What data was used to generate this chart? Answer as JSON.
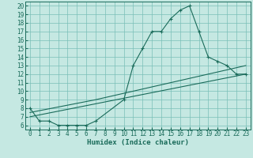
{
  "xlabel": "Humidex (Indice chaleur)",
  "xlim": [
    -0.5,
    23.5
  ],
  "ylim": [
    5.5,
    20.5
  ],
  "xticks": [
    0,
    1,
    2,
    3,
    4,
    5,
    6,
    7,
    8,
    9,
    10,
    11,
    12,
    13,
    14,
    15,
    16,
    17,
    18,
    19,
    20,
    21,
    22,
    23
  ],
  "yticks": [
    6,
    7,
    8,
    9,
    10,
    11,
    12,
    13,
    14,
    15,
    16,
    17,
    18,
    19,
    20
  ],
  "background_color": "#c5e8e2",
  "grid_color": "#7abfb8",
  "line_color": "#1a6b5a",
  "line1_x": [
    0,
    1,
    2,
    3,
    4,
    5,
    6,
    7,
    10,
    11,
    12,
    13,
    14,
    15,
    16,
    17,
    18,
    19,
    20,
    21,
    22,
    23
  ],
  "line1_y": [
    8.0,
    6.5,
    6.5,
    6.0,
    6.0,
    6.0,
    6.0,
    6.5,
    9.0,
    13.0,
    15.0,
    17.0,
    17.0,
    18.5,
    19.5,
    20.0,
    17.0,
    14.0,
    13.5,
    13.0,
    12.0,
    12.0
  ],
  "line2_x": [
    0,
    23
  ],
  "line2_y": [
    7.0,
    12.0
  ],
  "line3_x": [
    0,
    7,
    23
  ],
  "line3_y": [
    7.5,
    9.0,
    13.0
  ],
  "marker": "+"
}
